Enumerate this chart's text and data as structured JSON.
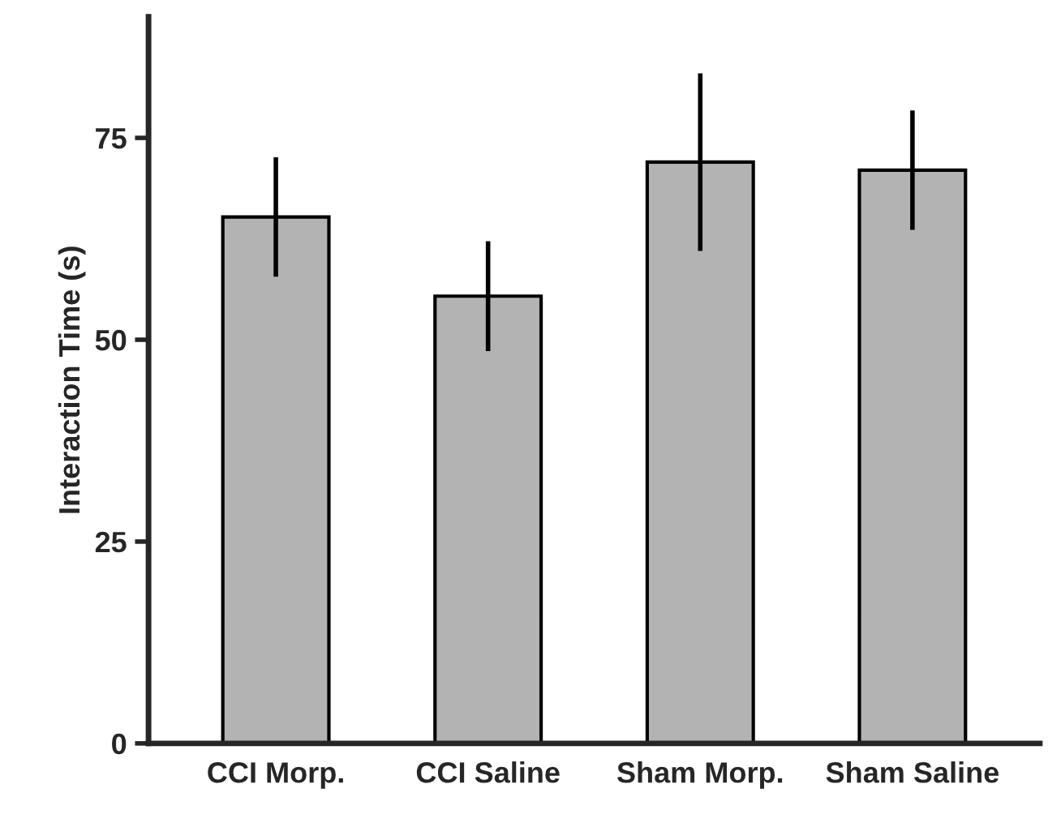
{
  "chart_data": {
    "type": "bar",
    "ylabel": "Interaction Time (s)",
    "categories": [
      "CCI Morp.",
      "CCI Saline",
      "Sham Morp.",
      "Sham Saline"
    ],
    "values": [
      65.2,
      55.4,
      72,
      71
    ],
    "errors": [
      7.4,
      6.8,
      11,
      7.4
    ],
    "color": "#b3b3b3",
    "ylim": [
      0,
      90
    ],
    "yticks": [
      0,
      25,
      50,
      75
    ],
    "grid": false,
    "legend": false
  }
}
